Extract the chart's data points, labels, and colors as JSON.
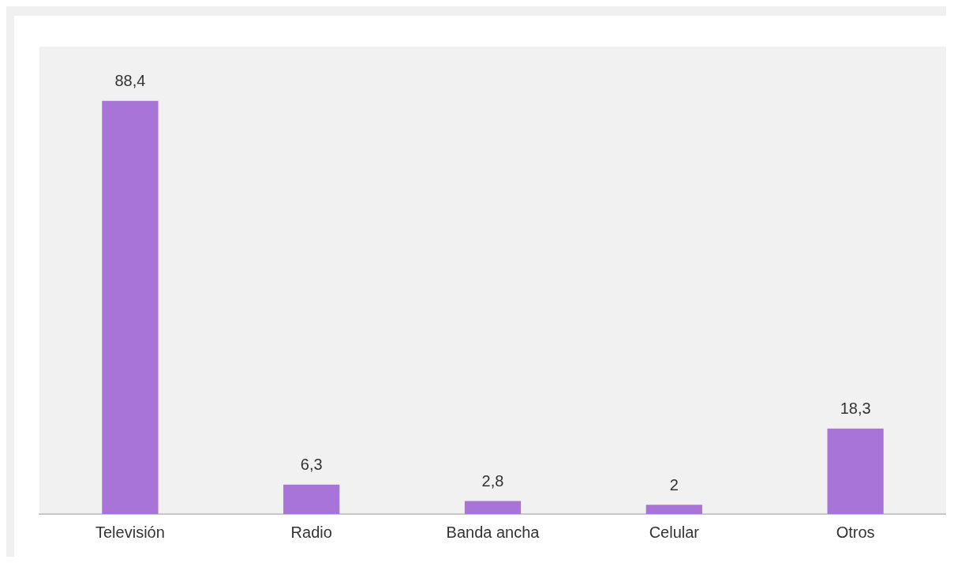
{
  "chart_data": {
    "type": "bar",
    "categories": [
      "Televisión",
      "Radio",
      "Banda ancha",
      "Celular",
      "Otros"
    ],
    "values": [
      88.4,
      6.3,
      2.8,
      2,
      18.3
    ],
    "value_labels": [
      "88,4",
      "6,3",
      "2,8",
      "2",
      "18,3"
    ],
    "color": "#a974d8",
    "grid": false,
    "legend": false
  }
}
